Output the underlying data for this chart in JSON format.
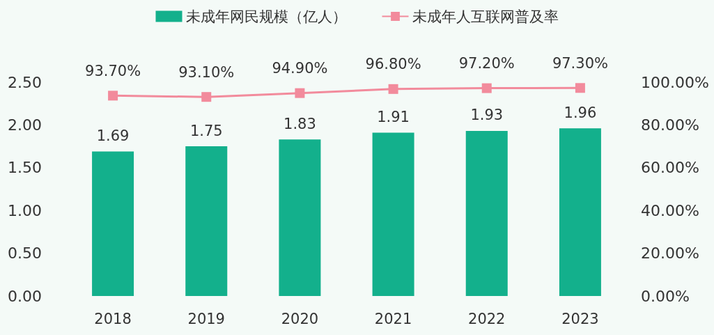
{
  "chart_data": {
    "type": "bar",
    "categories": [
      "2018",
      "2019",
      "2020",
      "2021",
      "2022",
      "2023"
    ],
    "series": [
      {
        "name": "未成年网民规模（亿人）",
        "color": "#13b08c",
        "values": [
          1.69,
          1.75,
          1.83,
          1.91,
          1.93,
          1.96
        ],
        "value_labels": [
          "1.69",
          "1.75",
          "1.83",
          "1.91",
          "1.93",
          "1.96"
        ]
      },
      {
        "name": "未成年人互联网普及率",
        "type": "line",
        "axis": "y2",
        "color": "#f28b9c",
        "values": [
          93.7,
          93.1,
          94.9,
          96.8,
          97.2,
          97.3
        ],
        "value_labels": [
          "93.70%",
          "93.10%",
          "94.90%",
          "96.80%",
          "97.20%",
          "97.30%"
        ]
      }
    ],
    "ylim": [
      0,
      2.5
    ],
    "yticks": [
      {
        "value": 0,
        "label": "0.00"
      },
      {
        "value": 0.5,
        "label": "0.50"
      },
      {
        "value": 1,
        "label": "1.00"
      },
      {
        "value": 1.5,
        "label": "1.50"
      },
      {
        "value": 2,
        "label": "2.00"
      },
      {
        "value": 2.5,
        "label": "2.50"
      }
    ],
    "y2lim": [
      0,
      100
    ],
    "y2ticks": [
      {
        "value": 0,
        "label": "0.00%"
      },
      {
        "value": 20,
        "label": "20.00%"
      },
      {
        "value": 40,
        "label": "40.00%"
      },
      {
        "value": 60,
        "label": "60.00%"
      },
      {
        "value": 80,
        "label": "80.00%"
      },
      {
        "value": 100,
        "label": "100.00%"
      }
    ],
    "grid": false,
    "legend": "top",
    "marker": "square",
    "line_style": "solid"
  }
}
